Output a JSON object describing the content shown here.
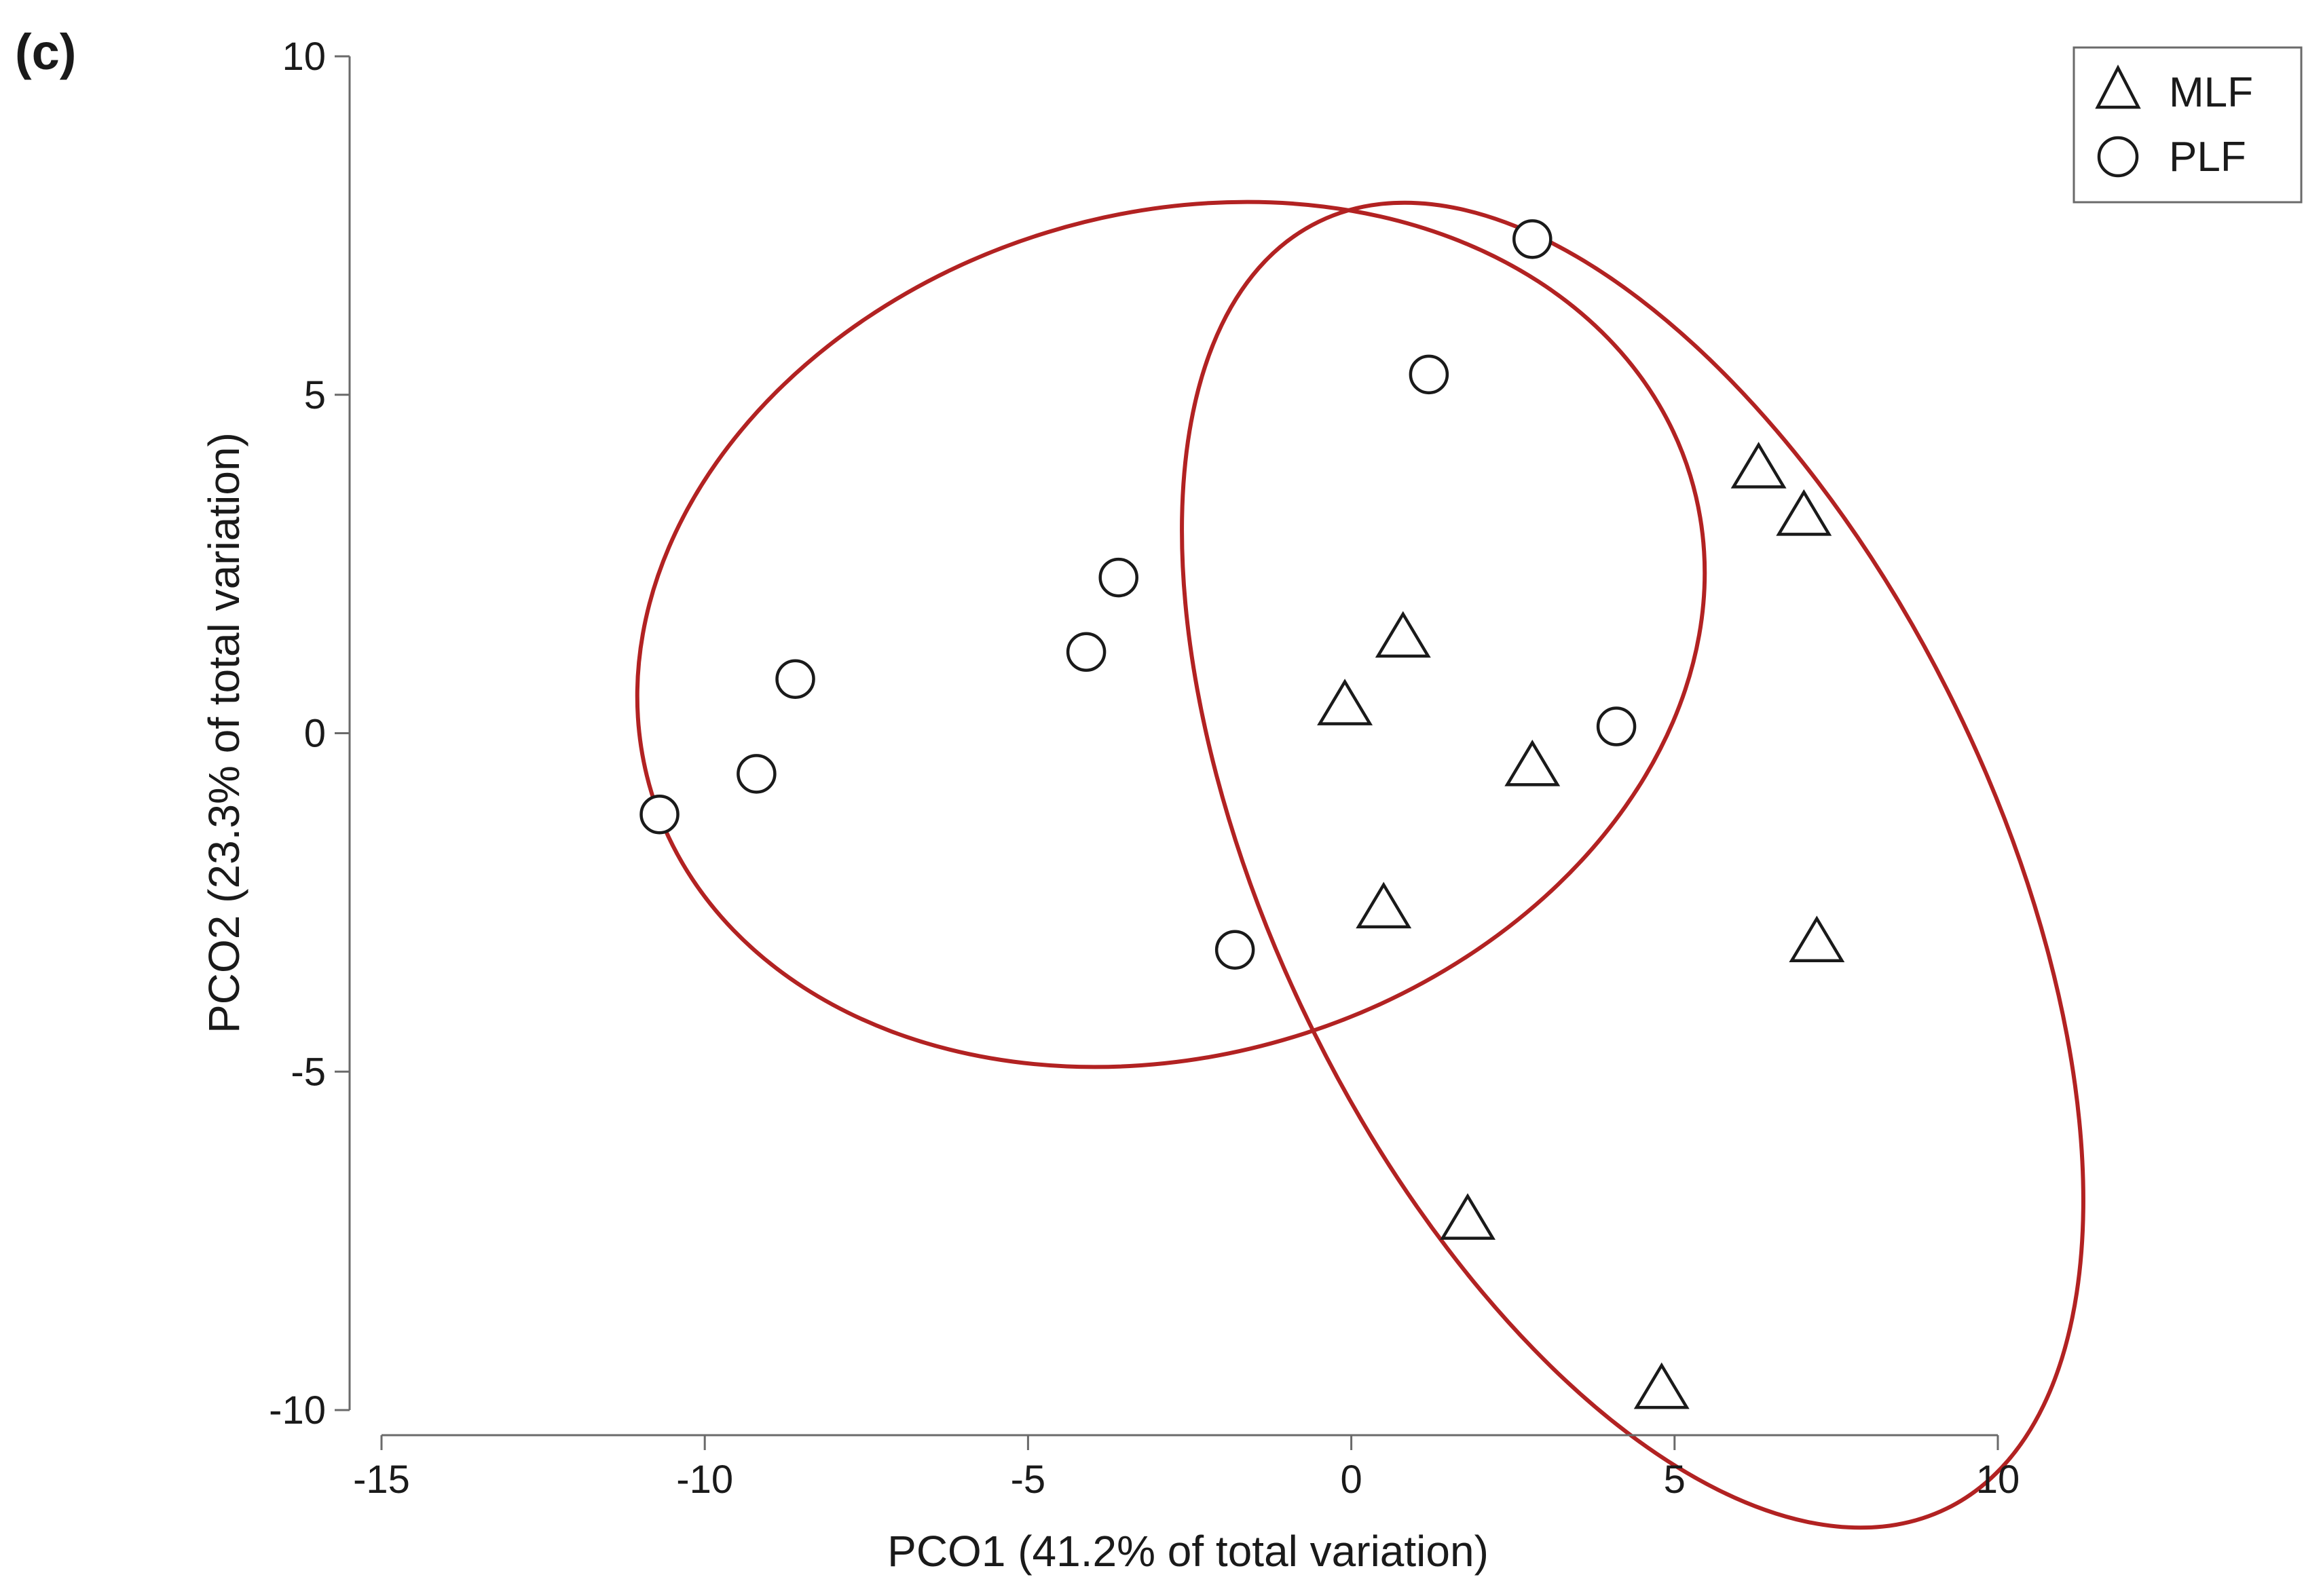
{
  "chart_data": {
    "type": "scatter",
    "panel_label": "(c)",
    "xlabel": "PCO1 (41.2% of total variation)",
    "ylabel": "PCO2 (23.3% of total variation)",
    "xlim": [
      -15,
      10
    ],
    "ylim": [
      -10,
      10
    ],
    "x_ticks": [
      -15,
      -10,
      -5,
      0,
      5,
      10
    ],
    "x_tick_labels": [
      "-15",
      "-10",
      "-5",
      "0",
      "5",
      "10"
    ],
    "y_ticks": [
      -10,
      -5,
      0,
      5,
      10
    ],
    "y_tick_labels": [
      "-10",
      "-5",
      "0",
      "5",
      "10"
    ],
    "grid": false,
    "legend_position": "top-right",
    "ellipse_color": "#b22222",
    "series": [
      {
        "name": "MLF",
        "marker": "triangle",
        "points": [
          {
            "x": 6.3,
            "y": 3.9
          },
          {
            "x": 7.0,
            "y": 3.2
          },
          {
            "x": 0.8,
            "y": 1.4
          },
          {
            "x": -0.1,
            "y": 0.4
          },
          {
            "x": 2.8,
            "y": -0.5
          },
          {
            "x": 0.5,
            "y": -2.6
          },
          {
            "x": 7.2,
            "y": -3.1
          },
          {
            "x": 1.8,
            "y": -7.2
          },
          {
            "x": 4.8,
            "y": -9.7
          }
        ]
      },
      {
        "name": "PLF",
        "marker": "circle",
        "points": [
          {
            "x": 2.8,
            "y": 7.3
          },
          {
            "x": 1.2,
            "y": 5.3
          },
          {
            "x": -3.6,
            "y": 2.3
          },
          {
            "x": -4.1,
            "y": 1.2
          },
          {
            "x": -8.6,
            "y": 0.8
          },
          {
            "x": -9.2,
            "y": -0.6
          },
          {
            "x": -10.7,
            "y": -1.2
          },
          {
            "x": -1.8,
            "y": -3.2
          },
          {
            "x": 4.1,
            "y": 0.1
          }
        ]
      }
    ]
  }
}
